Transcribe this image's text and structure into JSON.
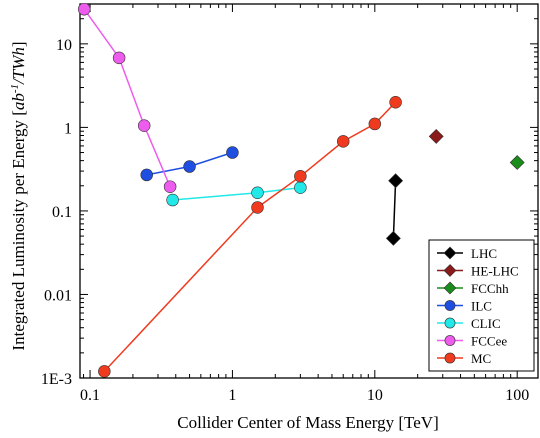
{
  "chart_data": {
    "type": "scatter",
    "xlabel": "Collider Center of Mass Energy [TeV]",
    "ylabel_main": "Integrated Luminosity per Energy [",
    "ylabel_unit_pre": "ab",
    "ylabel_unit_sup": "-1",
    "ylabel_unit_post": "/TWh",
    "ylabel_close": "]",
    "x_scale": "log",
    "y_scale": "log",
    "xlim": [
      0.085,
      140
    ],
    "ylim": [
      0.001,
      30
    ],
    "x_ticks": [
      0.1,
      1,
      10,
      100
    ],
    "x_tick_labels": [
      "0.1",
      "1",
      "10",
      "100"
    ],
    "y_ticks": [
      0.001,
      0.01,
      0.1,
      1,
      10
    ],
    "y_tick_labels": [
      "1E-3",
      "0.01",
      "0.1",
      "1",
      "10"
    ],
    "grid": false,
    "legend_position": "bottom-right",
    "series": [
      {
        "name": "LHC",
        "marker": "diamond",
        "color": "#000000",
        "points": [
          [
            13.5,
            0.047
          ],
          [
            14,
            0.23
          ]
        ]
      },
      {
        "name": "HE-LHC",
        "marker": "diamond",
        "color": "#8b1a1a",
        "points": [
          [
            27,
            0.78
          ]
        ]
      },
      {
        "name": "FCChh",
        "marker": "diamond",
        "color": "#1a8c1a",
        "points": [
          [
            100,
            0.38
          ]
        ]
      },
      {
        "name": "ILC",
        "marker": "circle",
        "color": "#1e4fe0",
        "points": [
          [
            0.25,
            0.27
          ],
          [
            0.5,
            0.34
          ],
          [
            1.0,
            0.5
          ]
        ]
      },
      {
        "name": "CLIC",
        "marker": "circle",
        "color": "#22e8e8",
        "points": [
          [
            0.38,
            0.135
          ],
          [
            1.5,
            0.165
          ],
          [
            3,
            0.19
          ]
        ]
      },
      {
        "name": "FCCee",
        "marker": "circle",
        "color": "#ee5cee",
        "points": [
          [
            0.091,
            26
          ],
          [
            0.16,
            6.8
          ],
          [
            0.24,
            1.05
          ],
          [
            0.365,
            0.195
          ]
        ]
      },
      {
        "name": "MC",
        "marker": "circle",
        "color": "#f03a1e",
        "points": [
          [
            0.126,
            0.0012
          ],
          [
            1.5,
            0.11
          ],
          [
            3,
            0.26
          ],
          [
            6,
            0.68
          ],
          [
            10,
            1.1
          ],
          [
            14,
            2.0
          ]
        ]
      }
    ]
  }
}
